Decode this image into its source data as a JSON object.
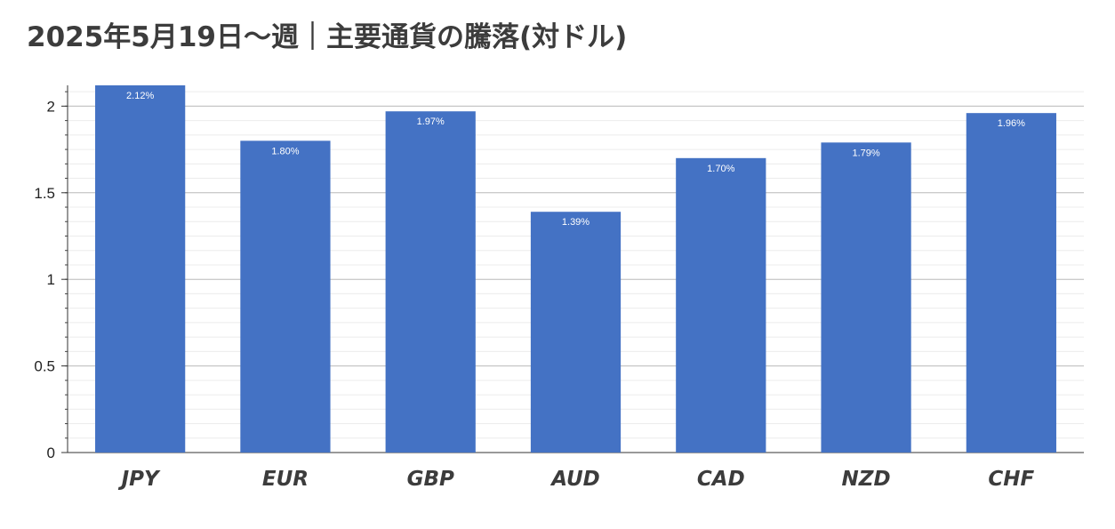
{
  "chart_data": {
    "type": "bar",
    "title": "2025年5月19日～週｜主要通貨の騰落(対ドル)",
    "xlabel": "",
    "ylabel": "",
    "categories": [
      "JPY",
      "EUR",
      "GBP",
      "AUD",
      "CAD",
      "NZD",
      "CHF"
    ],
    "values": [
      2.12,
      1.8,
      1.97,
      1.39,
      1.7,
      1.79,
      1.96
    ],
    "data_labels": [
      "2.12%",
      "1.80%",
      "1.97%",
      "1.39%",
      "1.70%",
      "1.79%",
      "1.96%"
    ],
    "ylim": [
      0,
      2.12
    ],
    "y_ticks": [
      "0",
      "0.5",
      "1",
      "1.5",
      "2"
    ],
    "y_tick_values": [
      0,
      0.5,
      1,
      1.5,
      2
    ],
    "minor_step": 0.083333,
    "grid": true,
    "legend": "none",
    "bar_color": "#4472c4"
  }
}
